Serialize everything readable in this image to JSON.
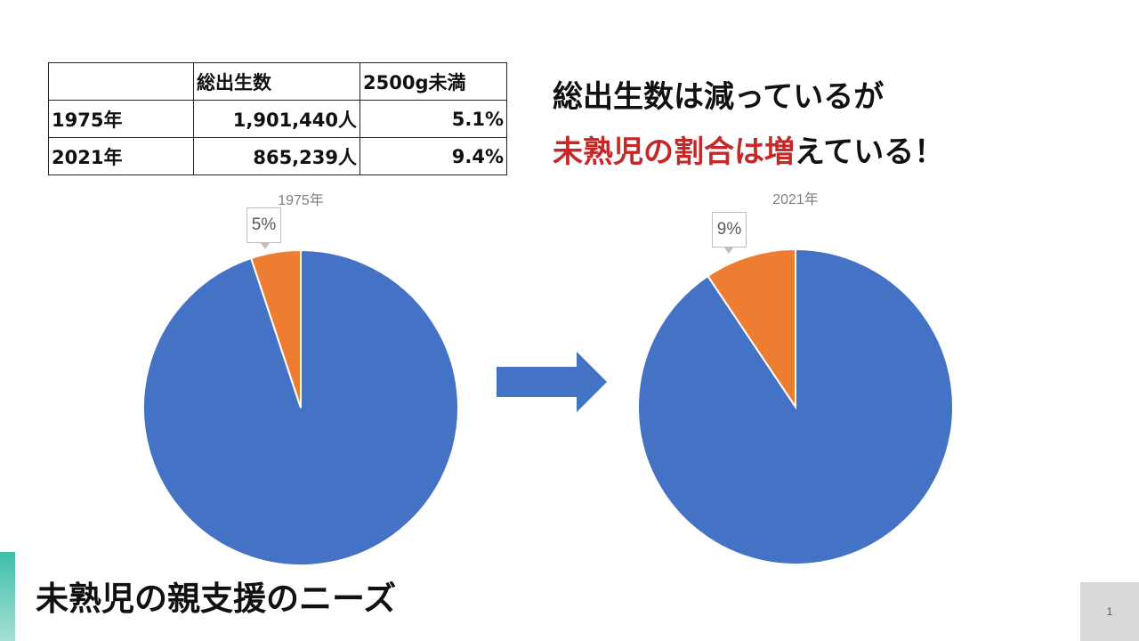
{
  "table": {
    "headers": [
      "",
      "総出生数",
      "2500g未満"
    ],
    "rows": [
      [
        "1975年",
        "1,901,440人",
        "5.1%"
      ],
      [
        "2021年",
        "865,239人",
        "9.4%"
      ]
    ]
  },
  "headline": {
    "line1": "総出生数は減っているが",
    "line2_red": "未熟児の割合は増",
    "line2_rest": "えている！"
  },
  "footer": {
    "title": "未熟児の親支援のニーズ",
    "page_number": "1"
  },
  "colors": {
    "series_main": "#4472c4",
    "series_low_weight": "#ed7d31",
    "headline_red": "#c62828",
    "arrow": "#4472c4"
  },
  "chart_data": [
    {
      "type": "pie",
      "title": "1975年",
      "slices": [
        {
          "value": 94.9,
          "color": "#4472c4"
        },
        {
          "value": 5.1,
          "color": "#ed7d31",
          "label": "5%"
        }
      ]
    },
    {
      "type": "pie",
      "title": "2021年",
      "slices": [
        {
          "value": 90.6,
          "color": "#4472c4"
        },
        {
          "value": 9.4,
          "color": "#ed7d31",
          "label": "9%"
        }
      ]
    }
  ]
}
